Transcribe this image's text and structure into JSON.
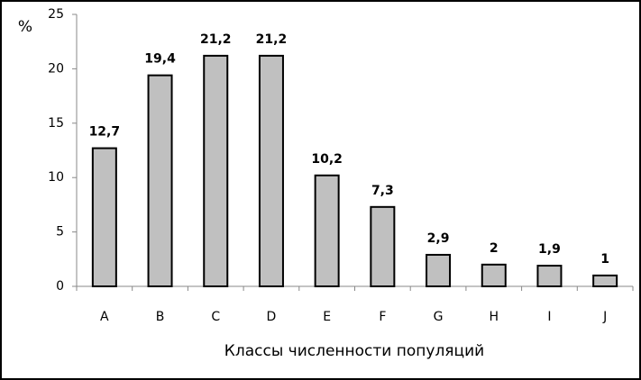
{
  "chart_data": {
    "type": "bar",
    "categories": [
      "A",
      "B",
      "C",
      "D",
      "E",
      "F",
      "G",
      "H",
      "I",
      "J"
    ],
    "values": [
      12.7,
      19.4,
      21.2,
      21.2,
      10.2,
      7.3,
      2.9,
      2,
      1.9,
      1
    ],
    "value_labels": [
      "12,7",
      "19,4",
      "21,2",
      "21,2",
      "10,2",
      "7,3",
      "2,9",
      "2",
      "1,9",
      "1"
    ],
    "color": "#c0c0c0",
    "ylabel": "%",
    "xlabel": "Классы численности популяций",
    "ylim": [
      0,
      25
    ],
    "yticks": [
      0,
      5,
      10,
      15,
      20,
      25
    ],
    "grid": false
  }
}
